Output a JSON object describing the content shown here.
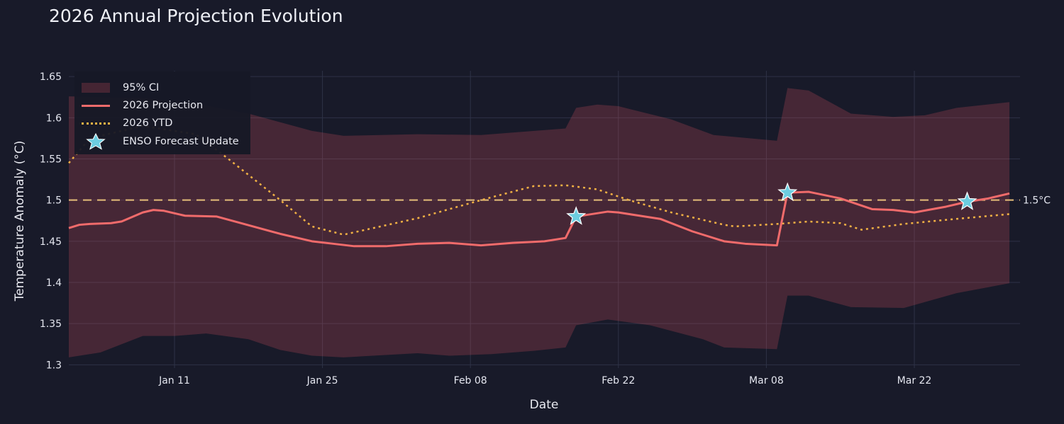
{
  "chart_data": {
    "type": "line",
    "title": "2026 Annual Projection Evolution",
    "xlabel": "Date",
    "ylabel": "Temperature Anomaly (°C)",
    "xlim": [
      "2026-01-01",
      "2026-04-01"
    ],
    "ylim": [
      1.296,
      1.657
    ],
    "x_ticks": [
      {
        "date": "2026-01-11",
        "label": "Jan 11"
      },
      {
        "date": "2026-01-25",
        "label": "Jan 25"
      },
      {
        "date": "2026-02-08",
        "label": "Feb 08"
      },
      {
        "date": "2026-02-22",
        "label": "Feb 22"
      },
      {
        "date": "2026-03-08",
        "label": "Mar 08"
      },
      {
        "date": "2026-03-22",
        "label": "Mar 22"
      }
    ],
    "y_ticks": [
      {
        "value": 1.3,
        "label": "1.3"
      },
      {
        "value": 1.35,
        "label": "1.35"
      },
      {
        "value": 1.4,
        "label": "1.4"
      },
      {
        "value": 1.45,
        "label": "1.45"
      },
      {
        "value": 1.5,
        "label": "1.5"
      },
      {
        "value": 1.55,
        "label": "1.55"
      },
      {
        "value": 1.6,
        "label": "1.6"
      },
      {
        "value": 1.65,
        "label": "1.65"
      }
    ],
    "grid": true,
    "legend_position": "top-left",
    "series": [
      {
        "name": "95% CI",
        "type": "band",
        "color": "#ef5564",
        "upper": {
          "x": [
            "2026-01-01",
            "2026-01-08",
            "2026-01-14",
            "2026-01-18",
            "2026-01-24",
            "2026-01-27",
            "2026-02-03",
            "2026-02-09",
            "2026-02-17",
            "2026-02-18",
            "2026-02-20",
            "2026-02-22",
            "2026-02-27",
            "2026-03-03",
            "2026-03-09",
            "2026-03-10",
            "2026-03-12",
            "2026-03-16",
            "2026-03-20",
            "2026-03-23",
            "2026-03-26",
            "2026-03-31"
          ],
          "y": [
            1.626,
            1.624,
            1.615,
            1.605,
            1.584,
            1.578,
            1.58,
            1.579,
            1.587,
            1.612,
            1.616,
            1.614,
            1.598,
            1.579,
            1.572,
            1.636,
            1.633,
            1.605,
            1.601,
            1.603,
            1.612,
            1.619
          ]
        },
        "lower": {
          "x": [
            "2026-01-01",
            "2026-01-04",
            "2026-01-08",
            "2026-01-11",
            "2026-01-14",
            "2026-01-18",
            "2026-01-21",
            "2026-01-24",
            "2026-01-27",
            "2026-02-03",
            "2026-02-06",
            "2026-02-10",
            "2026-02-14",
            "2026-02-17",
            "2026-02-18",
            "2026-02-21",
            "2026-02-25",
            "2026-03-02",
            "2026-03-04",
            "2026-03-09",
            "2026-03-10",
            "2026-03-12",
            "2026-03-16",
            "2026-03-21",
            "2026-03-26",
            "2026-03-31"
          ],
          "y": [
            1.309,
            1.315,
            1.335,
            1.335,
            1.338,
            1.331,
            1.318,
            1.311,
            1.309,
            1.314,
            1.311,
            1.313,
            1.317,
            1.321,
            1.348,
            1.355,
            1.348,
            1.331,
            1.321,
            1.319,
            1.384,
            1.384,
            1.37,
            1.369,
            1.387,
            1.399
          ]
        }
      },
      {
        "name": "2026 Projection",
        "type": "line",
        "color": "#f06b6b",
        "x": [
          "2026-01-01",
          "2026-01-02",
          "2026-01-03",
          "2026-01-05",
          "2026-01-06",
          "2026-01-08",
          "2026-01-09",
          "2026-01-10",
          "2026-01-11",
          "2026-01-12",
          "2026-01-15",
          "2026-01-17",
          "2026-01-21",
          "2026-01-24",
          "2026-01-26",
          "2026-01-28",
          "2026-01-31",
          "2026-02-03",
          "2026-02-06",
          "2026-02-09",
          "2026-02-12",
          "2026-02-15",
          "2026-02-17",
          "2026-02-18",
          "2026-02-21",
          "2026-02-22",
          "2026-02-24",
          "2026-02-26",
          "2026-03-01",
          "2026-03-04",
          "2026-03-06",
          "2026-03-09",
          "2026-03-10",
          "2026-03-12",
          "2026-03-15",
          "2026-03-18",
          "2026-03-20",
          "2026-03-22",
          "2026-03-25",
          "2026-03-27",
          "2026-03-29",
          "2026-03-31"
        ],
        "y": [
          1.466,
          1.47,
          1.471,
          1.472,
          1.474,
          1.485,
          1.488,
          1.487,
          1.484,
          1.481,
          1.48,
          1.473,
          1.459,
          1.45,
          1.447,
          1.444,
          1.444,
          1.447,
          1.448,
          1.445,
          1.448,
          1.45,
          1.454,
          1.48,
          1.486,
          1.485,
          1.481,
          1.477,
          1.462,
          1.45,
          1.447,
          1.445,
          1.509,
          1.51,
          1.502,
          1.489,
          1.488,
          1.485,
          1.492,
          1.498,
          1.502,
          1.508
        ]
      },
      {
        "name": "2026 YTD",
        "type": "line",
        "style": "dotted",
        "color": "#f2b144",
        "x": [
          "2026-01-01",
          "2026-01-03",
          "2026-01-08",
          "2026-01-13",
          "2026-01-16",
          "2026-01-21",
          "2026-01-24",
          "2026-01-27",
          "2026-02-03",
          "2026-02-09",
          "2026-02-14",
          "2026-02-17",
          "2026-02-20",
          "2026-02-23",
          "2026-02-27",
          "2026-03-04",
          "2026-03-05",
          "2026-03-09",
          "2026-03-12",
          "2026-03-15",
          "2026-03-17",
          "2026-03-21",
          "2026-03-25",
          "2026-03-31"
        ],
        "y": [
          1.545,
          1.575,
          1.59,
          1.58,
          1.551,
          1.5,
          1.468,
          1.458,
          1.478,
          1.5,
          1.517,
          1.518,
          1.513,
          1.5,
          1.485,
          1.47,
          1.468,
          1.471,
          1.474,
          1.472,
          1.464,
          1.471,
          1.476,
          1.483
        ]
      },
      {
        "name": "ENSO Forecast Update",
        "type": "scatter",
        "marker": "star",
        "color": "#6ccde0",
        "x": [
          "2026-02-18",
          "2026-03-10",
          "2026-03-27"
        ],
        "y": [
          1.48,
          1.509,
          1.498
        ]
      }
    ],
    "reference_line": {
      "y": 1.5,
      "label": "1.5°C",
      "style": "dashed",
      "color": "#e6bf7a"
    }
  }
}
